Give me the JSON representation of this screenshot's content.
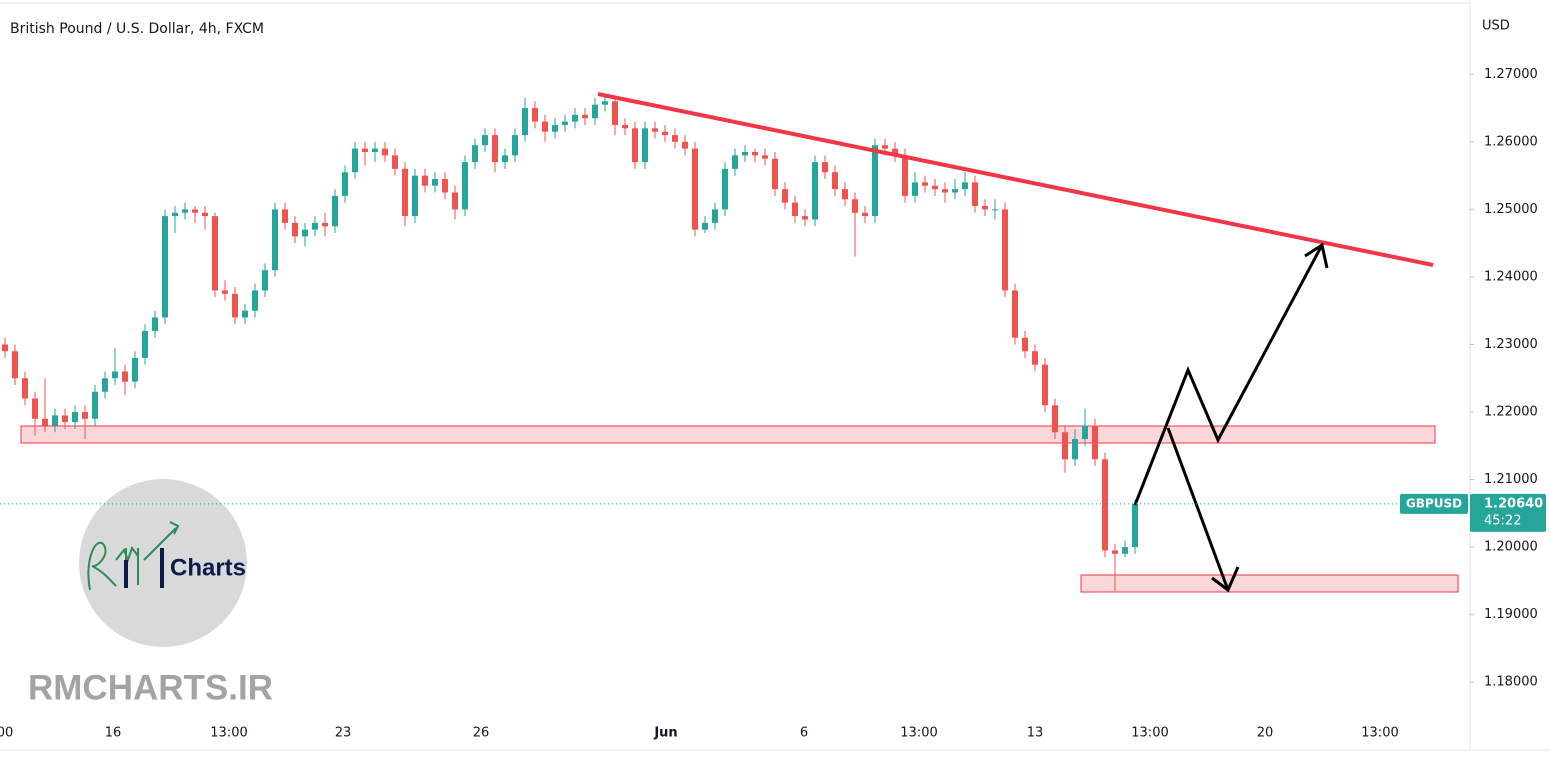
{
  "chart_data": {
    "type": "candlestick",
    "title": "British Pound / U.S. Dollar, 4h, FXCM",
    "currency": "USD",
    "up_color": "#26a69a",
    "down_color": "#ef5350",
    "xticks": [
      "00",
      "16",
      "13:00",
      "23",
      "26",
      "Jun",
      "6",
      "13:00",
      "13",
      "13:00",
      "20",
      "13:00"
    ],
    "ylim": [
      1.1744,
      1.281
    ],
    "yticks": [
      {
        "value": 1.27,
        "label": "1.27000"
      },
      {
        "value": 1.26,
        "label": "1.26000"
      },
      {
        "value": 1.25,
        "label": "1.25000"
      },
      {
        "value": 1.24,
        "label": "1.24000"
      },
      {
        "value": 1.23,
        "label": "1.23000"
      },
      {
        "value": 1.22,
        "label": "1.22000"
      },
      {
        "value": 1.21,
        "label": "1.21000"
      },
      {
        "value": 1.2,
        "label": "1.20000"
      },
      {
        "value": 1.19,
        "label": "1.19000"
      },
      {
        "value": 1.18,
        "label": "1.18000"
      }
    ],
    "ticker": "GBPUSD",
    "last_price": {
      "value": 1.2064,
      "label": "1.20640"
    },
    "countdown": "45:22",
    "open": [
      1.23,
      1.229,
      1.225,
      1.222,
      1.219,
      1.218,
      1.2195,
      1.2185,
      1.22,
      1.219,
      1.223,
      1.225,
      1.226,
      1.2245,
      1.228,
      1.232,
      1.234,
      1.249,
      1.2495,
      1.25,
      1.2495,
      1.249,
      1.238,
      1.2375,
      1.234,
      1.235,
      1.238,
      1.241,
      1.25,
      1.248,
      1.246,
      1.247,
      1.248,
      1.2475,
      1.252,
      1.2555,
      1.259,
      1.2585,
      1.259,
      1.258,
      1.256,
      1.249,
      1.255,
      1.2535,
      1.2545,
      1.2525,
      1.25,
      1.257,
      1.2595,
      1.261,
      1.257,
      1.258,
      1.261,
      1.265,
      1.263,
      1.2615,
      1.2625,
      1.263,
      1.264,
      1.2635,
      1.2655,
      1.266,
      1.2625,
      1.262,
      1.257,
      1.262,
      1.2615,
      1.261,
      1.26,
      1.259,
      1.247,
      1.248,
      1.25,
      1.256,
      1.258,
      1.2585,
      1.258,
      1.2575,
      1.253,
      1.251,
      1.249,
      1.2485,
      1.257,
      1.2555,
      1.253,
      1.2515,
      1.2495,
      1.249,
      1.2595,
      1.259,
      1.258,
      1.252,
      1.254,
      1.2535,
      1.253,
      1.2525,
      1.253,
      1.254,
      1.2505,
      1.25,
      1.25,
      1.238,
      1.231,
      1.229,
      1.227,
      1.221,
      1.217,
      1.213,
      1.216,
      1.218,
      1.213,
      1.1995,
      1.199,
      1.2
    ],
    "high": [
      1.231,
      1.23,
      1.226,
      1.223,
      1.225,
      1.2205,
      1.2205,
      1.221,
      1.221,
      1.224,
      1.226,
      1.2295,
      1.227,
      1.229,
      1.233,
      1.235,
      1.25,
      1.2505,
      1.251,
      1.2505,
      1.2505,
      1.2495,
      1.2395,
      1.2385,
      1.236,
      1.239,
      1.242,
      1.251,
      1.251,
      1.249,
      1.248,
      1.249,
      1.2495,
      1.253,
      1.2565,
      1.26,
      1.26,
      1.26,
      1.26,
      1.259,
      1.257,
      1.256,
      1.256,
      1.2555,
      1.2555,
      1.2535,
      1.258,
      1.2605,
      1.262,
      1.262,
      1.259,
      1.262,
      1.2665,
      1.266,
      1.264,
      1.2635,
      1.264,
      1.265,
      1.265,
      1.2665,
      1.267,
      1.2665,
      1.2635,
      1.263,
      1.263,
      1.263,
      1.2625,
      1.262,
      1.261,
      1.26,
      1.249,
      1.251,
      1.257,
      1.259,
      1.2595,
      1.259,
      1.259,
      1.2585,
      1.254,
      1.252,
      1.25,
      1.258,
      1.258,
      1.2565,
      1.254,
      1.2525,
      1.2505,
      1.2605,
      1.2605,
      1.26,
      1.259,
      1.2555,
      1.255,
      1.2545,
      1.254,
      1.2545,
      1.2555,
      1.255,
      1.2515,
      1.2515,
      1.251,
      1.239,
      1.232,
      1.23,
      1.228,
      1.222,
      1.218,
      1.2175,
      1.2205,
      1.219,
      1.214,
      1.2005,
      1.201,
      1.207
    ],
    "low": [
      1.228,
      1.224,
      1.221,
      1.2165,
      1.217,
      1.217,
      1.2175,
      1.2175,
      1.216,
      1.218,
      1.222,
      1.224,
      1.2225,
      1.2235,
      1.227,
      1.231,
      1.233,
      1.2465,
      1.2485,
      1.248,
      1.247,
      1.237,
      1.2365,
      1.233,
      1.233,
      1.234,
      1.237,
      1.24,
      1.247,
      1.245,
      1.2445,
      1.246,
      1.246,
      1.2465,
      1.251,
      1.2545,
      1.2565,
      1.257,
      1.257,
      1.255,
      1.2475,
      1.248,
      1.2525,
      1.2525,
      1.2515,
      1.2485,
      1.249,
      1.256,
      1.2585,
      1.2555,
      1.256,
      1.257,
      1.26,
      1.262,
      1.26,
      1.2605,
      1.2615,
      1.262,
      1.2625,
      1.2625,
      1.2645,
      1.261,
      1.261,
      1.256,
      1.256,
      1.2605,
      1.26,
      1.259,
      1.258,
      1.246,
      1.2465,
      1.247,
      1.249,
      1.255,
      1.257,
      1.257,
      1.2565,
      1.252,
      1.25,
      1.248,
      1.2475,
      1.2475,
      1.2545,
      1.252,
      1.2505,
      1.243,
      1.248,
      1.248,
      1.258,
      1.257,
      1.251,
      1.251,
      1.2525,
      1.252,
      1.251,
      1.2515,
      1.252,
      1.2495,
      1.249,
      1.2485,
      1.237,
      1.23,
      1.228,
      1.226,
      1.22,
      1.216,
      1.211,
      1.212,
      1.215,
      1.212,
      1.1985,
      1.1935,
      1.1985,
      1.199
    ],
    "close": [
      1.229,
      1.225,
      1.222,
      1.219,
      1.218,
      1.2195,
      1.2185,
      1.22,
      1.219,
      1.223,
      1.225,
      1.226,
      1.2245,
      1.228,
      1.232,
      1.234,
      1.249,
      1.2495,
      1.25,
      1.2495,
      1.249,
      1.238,
      1.2375,
      1.234,
      1.235,
      1.238,
      1.241,
      1.25,
      1.248,
      1.246,
      1.247,
      1.248,
      1.2475,
      1.252,
      1.2555,
      1.259,
      1.2585,
      1.259,
      1.258,
      1.256,
      1.249,
      1.255,
      1.2535,
      1.2545,
      1.2525,
      1.25,
      1.257,
      1.2595,
      1.261,
      1.257,
      1.258,
      1.261,
      1.265,
      1.263,
      1.2615,
      1.2625,
      1.263,
      1.264,
      1.2635,
      1.2655,
      1.266,
      1.2625,
      1.262,
      1.257,
      1.262,
      1.2615,
      1.261,
      1.26,
      1.259,
      1.247,
      1.248,
      1.25,
      1.256,
      1.258,
      1.2585,
      1.258,
      1.2575,
      1.253,
      1.251,
      1.249,
      1.2485,
      1.257,
      1.2555,
      1.253,
      1.2515,
      1.2495,
      1.249,
      1.2595,
      1.259,
      1.258,
      1.252,
      1.254,
      1.2535,
      1.253,
      1.2525,
      1.253,
      1.254,
      1.2505,
      1.25,
      1.25,
      1.238,
      1.231,
      1.229,
      1.227,
      1.221,
      1.217,
      1.213,
      1.216,
      1.218,
      1.213,
      1.1995,
      1.199,
      1.2,
      1.2064
    ]
  },
  "logo_text": "Charts",
  "watermark": "RMCHARTS.IR"
}
